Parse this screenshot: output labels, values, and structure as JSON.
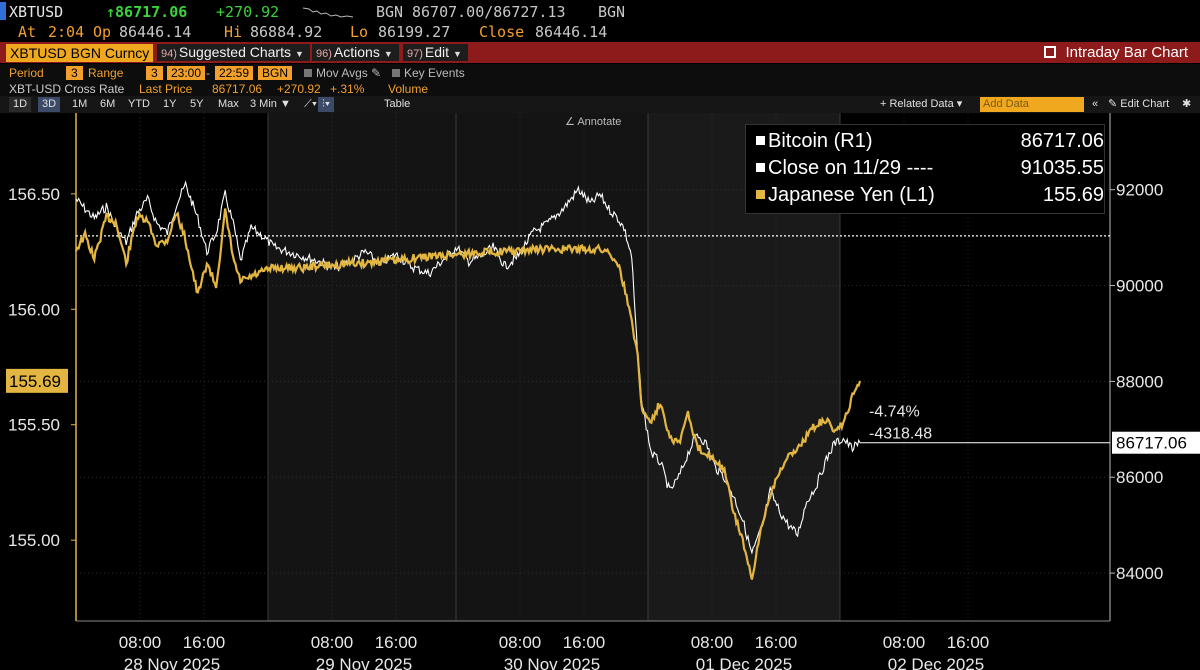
{
  "header": {
    "ticker": "XBTUSD",
    "last": "↑86717.06",
    "change": "+270.92",
    "source": "BGN",
    "bid_ask": "86707.00/86727.13",
    "source2": "BGN",
    "at_label": "At",
    "at_time": "2:04",
    "op_label": "Op",
    "open": "86446.14",
    "hi_label": "Hi",
    "high": "86884.92",
    "lo_label": "Lo",
    "low": "86199.27",
    "close_label": "Close",
    "close": "86446.14"
  },
  "toolbar": {
    "security": "XBTUSD BGN Curncy",
    "menus": [
      {
        "num": "94)",
        "label": "Suggested Charts"
      },
      {
        "num": "96)",
        "label": "Actions"
      },
      {
        "num": "97)",
        "label": "Edit"
      }
    ],
    "title": "Intraday Bar Chart"
  },
  "params": {
    "period_label": "Period",
    "period": "3",
    "range_label": "Range",
    "range": "3",
    "from": "23:00",
    "to": "22:59",
    "source": "BGN",
    "mov_avgs": "Mov Avgs",
    "key_events": "Key Events"
  },
  "info": {
    "name": "XBT-USD Cross Rate",
    "last_label": "Last Price",
    "last": "86717.06",
    "chg": "+270.92",
    "pct": "+.31%",
    "volume": "Volume"
  },
  "ranges": {
    "items": [
      "1D",
      "3D",
      "1M",
      "6M",
      "YTD",
      "1Y",
      "5Y",
      "Max"
    ],
    "active": "3D",
    "interval": "3 Min ▼",
    "table": "Table",
    "related": "+ Related Data ▾",
    "add_data": "Add Data",
    "edit_chart": "Edit Chart"
  },
  "annotate": "Annotate",
  "legend": [
    {
      "name": "Bitcoin (R1)",
      "value": "86717.06",
      "color": "#ffffff"
    },
    {
      "name": "Close on 11/29 ----",
      "value": "91035.55",
      "color": "#ffffff"
    },
    {
      "name": "Japanese Yen (L1)",
      "value": "155.69",
      "color": "#e3b541"
    }
  ],
  "colors": {
    "bitcoin": "#ffffff",
    "yen": "#e3b541",
    "accent": "#f0a81e",
    "toolbar_red": "#8d1b1b"
  },
  "chart_data": {
    "type": "line",
    "title": "",
    "x_ticks": [
      "08:00",
      "16:00",
      "08:00",
      "16:00",
      "08:00",
      "16:00",
      "08:00",
      "16:00",
      "08:00",
      "16:00"
    ],
    "date_labels": [
      "28 Nov 2025",
      "29 Nov 2025",
      "30 Nov 2025",
      "01 Dec 2025",
      "02 Dec 2025"
    ],
    "left_axis": {
      "ticks": [
        "156.50",
        "156.00",
        "155.50",
        "155.00"
      ],
      "ylim": [
        154.65,
        156.85
      ],
      "last": "155.69"
    },
    "right_axis": {
      "ticks": [
        "92000",
        "90000",
        "88000",
        "86000",
        "84000"
      ],
      "ylim": [
        83000,
        93600
      ],
      "last": "86717.06"
    },
    "reference_line": {
      "label": "Close on 11/29",
      "value": 91035.55
    },
    "change_annotation": {
      "pct": "-4.74%",
      "abs": "-4318.48"
    },
    "series": [
      {
        "name": "Bitcoin (R1)",
        "axis": "right",
        "points": [
          [
            0,
            91800
          ],
          [
            6,
            91600
          ],
          [
            12,
            91400
          ],
          [
            20,
            91650
          ],
          [
            26,
            91200
          ],
          [
            33,
            90900
          ],
          [
            40,
            91500
          ],
          [
            47,
            91800
          ],
          [
            53,
            91300
          ],
          [
            60,
            91100
          ],
          [
            66,
            91700
          ],
          [
            72,
            92100
          ],
          [
            80,
            91400
          ],
          [
            86,
            90700
          ],
          [
            92,
            91100
          ],
          [
            98,
            91900
          ],
          [
            104,
            91200
          ],
          [
            108,
            90500
          ],
          [
            115,
            91200
          ],
          [
            122,
            91050
          ],
          [
            130,
            90800
          ],
          [
            140,
            90700
          ],
          [
            150,
            90600
          ],
          [
            160,
            90500
          ],
          [
            170,
            90350
          ],
          [
            180,
            90500
          ],
          [
            190,
            90700
          ],
          [
            200,
            90450
          ],
          [
            210,
            90650
          ],
          [
            220,
            90400
          ],
          [
            232,
            90250
          ],
          [
            240,
            90500
          ],
          [
            250,
            90800
          ],
          [
            258,
            90500
          ],
          [
            266,
            90600
          ],
          [
            274,
            90800
          ],
          [
            282,
            90400
          ],
          [
            290,
            90600
          ],
          [
            300,
            91100
          ],
          [
            310,
            91300
          ],
          [
            320,
            91600
          ],
          [
            330,
            92000
          ],
          [
            338,
            91700
          ],
          [
            344,
            91900
          ],
          [
            350,
            91600
          ],
          [
            356,
            91400
          ],
          [
            360,
            91200
          ],
          [
            365,
            90600
          ],
          [
            369,
            88500
          ],
          [
            372,
            87500
          ],
          [
            378,
            86500
          ],
          [
            384,
            86300
          ],
          [
            390,
            85700
          ],
          [
            396,
            86000
          ],
          [
            402,
            86500
          ],
          [
            408,
            86900
          ],
          [
            414,
            86700
          ],
          [
            420,
            86200
          ],
          [
            426,
            86000
          ],
          [
            432,
            85600
          ],
          [
            438,
            85100
          ],
          [
            444,
            84400
          ],
          [
            450,
            84900
          ],
          [
            456,
            85700
          ],
          [
            462,
            85300
          ],
          [
            468,
            85000
          ],
          [
            474,
            84800
          ],
          [
            480,
            85500
          ],
          [
            486,
            85800
          ],
          [
            492,
            86300
          ],
          [
            498,
            86700
          ],
          [
            504,
            86800
          ],
          [
            510,
            86600
          ],
          [
            515,
            86720
          ]
        ]
      },
      {
        "name": "Japanese Yen (L1)",
        "axis": "left",
        "points": [
          [
            0,
            156.26
          ],
          [
            6,
            156.32
          ],
          [
            12,
            156.22
          ],
          [
            20,
            156.4
          ],
          [
            26,
            156.38
          ],
          [
            33,
            156.2
          ],
          [
            40,
            156.4
          ],
          [
            47,
            156.38
          ],
          [
            53,
            156.28
          ],
          [
            60,
            156.3
          ],
          [
            66,
            156.42
          ],
          [
            72,
            156.3
          ],
          [
            80,
            156.06
          ],
          [
            86,
            156.2
          ],
          [
            92,
            156.1
          ],
          [
            98,
            156.42
          ],
          [
            104,
            156.2
          ],
          [
            108,
            156.12
          ],
          [
            115,
            156.14
          ],
          [
            122,
            156.16
          ],
          [
            130,
            156.18
          ],
          [
            140,
            156.18
          ],
          [
            150,
            156.18
          ],
          [
            160,
            156.19
          ],
          [
            170,
            156.19
          ],
          [
            180,
            156.2
          ],
          [
            190,
            156.2
          ],
          [
            200,
            156.21
          ],
          [
            210,
            156.21
          ],
          [
            220,
            156.22
          ],
          [
            232,
            156.23
          ],
          [
            240,
            156.23
          ],
          [
            250,
            156.24
          ],
          [
            258,
            156.24
          ],
          [
            266,
            156.25
          ],
          [
            274,
            156.25
          ],
          [
            282,
            156.25
          ],
          [
            290,
            156.25
          ],
          [
            300,
            156.26
          ],
          [
            310,
            156.26
          ],
          [
            320,
            156.26
          ],
          [
            330,
            156.26
          ],
          [
            338,
            156.26
          ],
          [
            344,
            156.26
          ],
          [
            350,
            156.25
          ],
          [
            356,
            156.2
          ],
          [
            360,
            156.1
          ],
          [
            365,
            155.95
          ],
          [
            369,
            155.8
          ],
          [
            372,
            155.55
          ],
          [
            378,
            155.52
          ],
          [
            384,
            155.6
          ],
          [
            390,
            155.45
          ],
          [
            396,
            155.42
          ],
          [
            402,
            155.55
          ],
          [
            408,
            155.4
          ],
          [
            414,
            155.38
          ],
          [
            420,
            155.35
          ],
          [
            426,
            155.3
          ],
          [
            432,
            155.12
          ],
          [
            438,
            155.0
          ],
          [
            444,
            154.82
          ],
          [
            450,
            155.05
          ],
          [
            456,
            155.2
          ],
          [
            462,
            155.3
          ],
          [
            468,
            155.36
          ],
          [
            474,
            155.4
          ],
          [
            480,
            155.45
          ],
          [
            486,
            155.5
          ],
          [
            492,
            155.52
          ],
          [
            498,
            155.48
          ],
          [
            504,
            155.5
          ],
          [
            510,
            155.62
          ],
          [
            515,
            155.69
          ]
        ]
      }
    ]
  }
}
